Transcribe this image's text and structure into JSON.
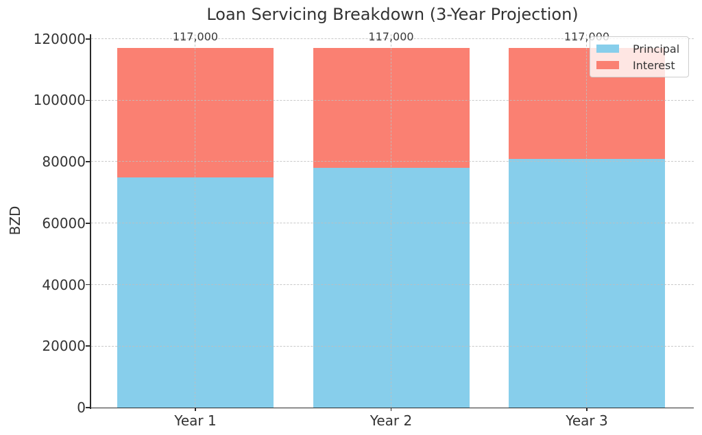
{
  "chart_data": {
    "type": "bar",
    "stacked": true,
    "title": "Loan Servicing Breakdown (3-Year Projection)",
    "xlabel": "",
    "ylabel": "BZD",
    "categories": [
      "Year 1",
      "Year 2",
      "Year 3"
    ],
    "series": [
      {
        "name": "Principal",
        "color": "#87CEEB",
        "values": [
          75000,
          78000,
          81000
        ]
      },
      {
        "name": "Interest",
        "color": "#FA8072",
        "values": [
          42000,
          39000,
          36000
        ]
      }
    ],
    "bar_totals": [
      117000,
      117000,
      117000
    ],
    "bar_total_labels": [
      "117,000",
      "117,000",
      "117,000"
    ],
    "yticks": [
      0,
      20000,
      40000,
      60000,
      80000,
      100000,
      120000
    ],
    "ytick_labels": [
      "0",
      "20000",
      "40000",
      "60000",
      "80000",
      "100000",
      "120000"
    ],
    "ylim": [
      0,
      121500
    ],
    "grid": true,
    "legend_position": "upper right"
  },
  "style": {
    "background": "#ffffff",
    "text_color": "#333333",
    "spine_color": "#2a2a2a",
    "grid_color": "#bebebe",
    "legend_background": "rgba(255,255,255,0.8)",
    "legend_border": "#cccccc"
  }
}
